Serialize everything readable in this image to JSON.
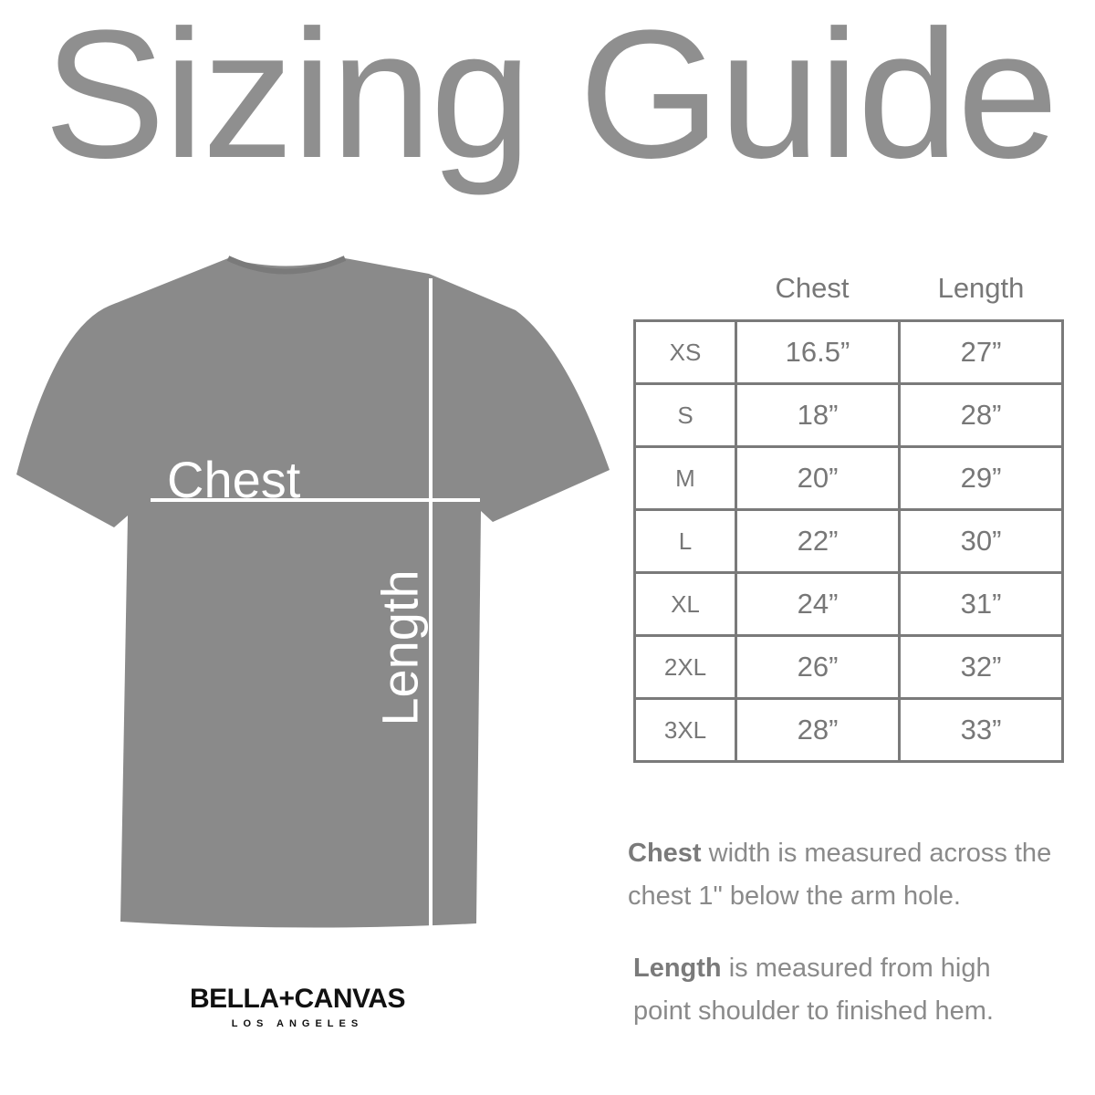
{
  "title": "Sizing Guide",
  "shirt": {
    "chest_label": "Chest",
    "length_label": "Length",
    "color": "#8a8a8a"
  },
  "table": {
    "headers": [
      "Chest",
      "Length"
    ],
    "rows": [
      {
        "size": "XS",
        "chest": "16.5”",
        "length": "27”"
      },
      {
        "size": "S",
        "chest": "18”",
        "length": "28”"
      },
      {
        "size": "M",
        "chest": "20”",
        "length": "29”"
      },
      {
        "size": "L",
        "chest": "22”",
        "length": "30”"
      },
      {
        "size": "XL",
        "chest": "24”",
        "length": "31”"
      },
      {
        "size": "2XL",
        "chest": "26”",
        "length": "32”"
      },
      {
        "size": "3XL",
        "chest": "28”",
        "length": "33”"
      }
    ]
  },
  "notes": {
    "chest_bold": "Chest",
    "chest_text": " width is measured across the chest 1\" below the arm hole.",
    "length_bold": "Length",
    "length_text": " is measured from high point shoulder to finished hem."
  },
  "logo": {
    "brand": "BELLA+CANVAS",
    "sub": "LOS ANGELES"
  }
}
